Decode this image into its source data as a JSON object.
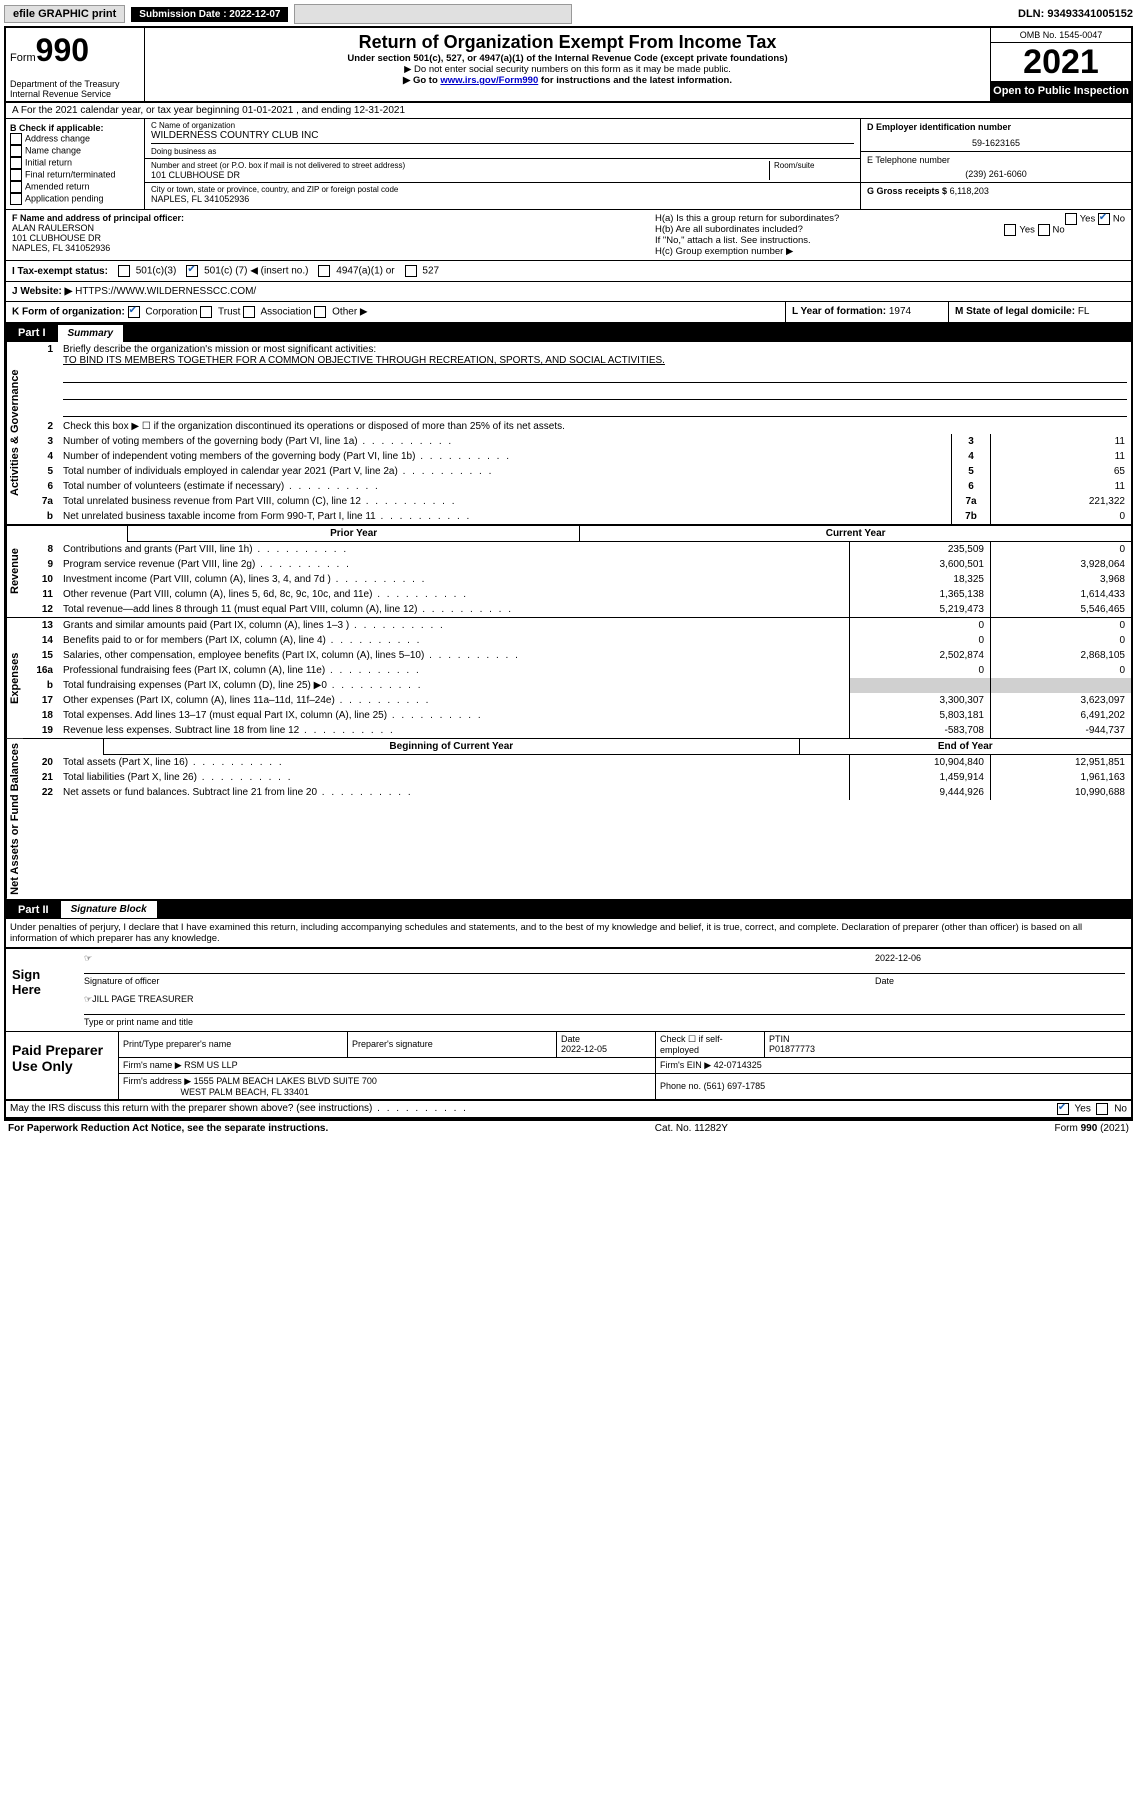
{
  "topbar": {
    "efile": "efile GRAPHIC print",
    "sub_label": "Submission Date : 2022-12-07",
    "dln": "DLN: 93493341005152"
  },
  "header": {
    "form_prefix": "Form",
    "form_number": "990",
    "dept": "Department of the Treasury",
    "irs": "Internal Revenue Service",
    "title": "Return of Organization Exempt From Income Tax",
    "sub1": "Under section 501(c), 527, or 4947(a)(1) of the Internal Revenue Code (except private foundations)",
    "sub2": "▶ Do not enter social security numbers on this form as it may be made public.",
    "sub3_prefix": "▶ Go to ",
    "sub3_link": "www.irs.gov/Form990",
    "sub3_suffix": " for instructions and the latest information.",
    "omb": "OMB No. 1545-0047",
    "year": "2021",
    "open_public": "Open to Public Inspection"
  },
  "row_a": "A For the 2021 calendar year, or tax year beginning 01-01-2021   , and ending 12-31-2021",
  "col_b": {
    "hdr": "B Check if applicable:",
    "items": [
      "Address change",
      "Name change",
      "Initial return",
      "Final return/terminated",
      "Amended return",
      "Application pending"
    ]
  },
  "col_c": {
    "name_lbl": "C Name of organization",
    "name_val": "WILDERNESS COUNTRY CLUB INC",
    "dba_lbl": "Doing business as",
    "dba_val": "",
    "addr_lbl": "Number and street (or P.O. box if mail is not delivered to street address)",
    "room_lbl": "Room/suite",
    "addr_val": "101 CLUBHOUSE DR",
    "city_lbl": "City or town, state or province, country, and ZIP or foreign postal code",
    "city_val": "NAPLES, FL  341052936"
  },
  "col_de": {
    "d_lbl": "D Employer identification number",
    "d_val": "59-1623165",
    "e_lbl": "E Telephone number",
    "e_val": "(239) 261-6060",
    "g_lbl": "G Gross receipts $",
    "g_val": "6,118,203"
  },
  "row_f": {
    "f_lbl": "F Name and address of principal officer:",
    "f_val1": "ALAN RAULERSON",
    "f_val2": "101 CLUBHOUSE DR",
    "f_val3": "NAPLES, FL  341052936",
    "ha": "H(a)  Is this a group return for subordinates?",
    "hb": "H(b)  Are all subordinates included?",
    "hb_note": "If \"No,\" attach a list. See instructions.",
    "hc": "H(c)  Group exemption number ▶"
  },
  "tax_status": {
    "lbl": "I  Tax-exempt status:",
    "opt1": "501(c)(3)",
    "opt2_pre": "501(c) (",
    "opt2_num": "7",
    "opt2_post": ") ◀ (insert no.)",
    "opt3": "4947(a)(1) or",
    "opt4": "527"
  },
  "row_j": {
    "lbl": "J  Website: ▶",
    "val": "HTTPS://WWW.WILDERNESSCC.COM/"
  },
  "row_k": {
    "lbl": "K Form of organization:",
    "opts": [
      "Corporation",
      "Trust",
      "Association",
      "Other ▶"
    ],
    "l_lbl": "L Year of formation:",
    "l_val": "1974",
    "m_lbl": "M State of legal domicile:",
    "m_val": "FL"
  },
  "part1": {
    "label": "Part I",
    "title": "Summary",
    "line1_lbl": "Briefly describe the organization's mission or most significant activities:",
    "line1_val": "TO BIND ITS MEMBERS TOGETHER FOR A COMMON OBJECTIVE THROUGH RECREATION, SPORTS, AND SOCIAL ACTIVITIES.",
    "line2": "Check this box ▶ ☐  if the organization discontinued its operations or disposed of more than 25% of its net assets.",
    "sides": {
      "gov": "Activities & Governance",
      "rev": "Revenue",
      "exp": "Expenses",
      "net": "Net Assets or Fund Balances"
    },
    "gov_rows": [
      {
        "n": "3",
        "t": "Number of voting members of the governing body (Part VI, line 1a)",
        "c": "3",
        "v": "11"
      },
      {
        "n": "4",
        "t": "Number of independent voting members of the governing body (Part VI, line 1b)",
        "c": "4",
        "v": "11"
      },
      {
        "n": "5",
        "t": "Total number of individuals employed in calendar year 2021 (Part V, line 2a)",
        "c": "5",
        "v": "65"
      },
      {
        "n": "6",
        "t": "Total number of volunteers (estimate if necessary)",
        "c": "6",
        "v": "11"
      },
      {
        "n": "7a",
        "t": "Total unrelated business revenue from Part VIII, column (C), line 12",
        "c": "7a",
        "v": "221,322"
      },
      {
        "n": "b",
        "t": "Net unrelated business taxable income from Form 990-T, Part I, line 11",
        "c": "7b",
        "v": "0"
      }
    ],
    "col_hdrs": {
      "prior": "Prior Year",
      "current": "Current Year",
      "boy": "Beginning of Current Year",
      "eoy": "End of Year"
    },
    "rev_rows": [
      {
        "n": "8",
        "t": "Contributions and grants (Part VIII, line 1h)",
        "p": "235,509",
        "c": "0"
      },
      {
        "n": "9",
        "t": "Program service revenue (Part VIII, line 2g)",
        "p": "3,600,501",
        "c": "3,928,064"
      },
      {
        "n": "10",
        "t": "Investment income (Part VIII, column (A), lines 3, 4, and 7d )",
        "p": "18,325",
        "c": "3,968"
      },
      {
        "n": "11",
        "t": "Other revenue (Part VIII, column (A), lines 5, 6d, 8c, 9c, 10c, and 11e)",
        "p": "1,365,138",
        "c": "1,614,433"
      },
      {
        "n": "12",
        "t": "Total revenue—add lines 8 through 11 (must equal Part VIII, column (A), line 12)",
        "p": "5,219,473",
        "c": "5,546,465"
      }
    ],
    "exp_rows": [
      {
        "n": "13",
        "t": "Grants and similar amounts paid (Part IX, column (A), lines 1–3 )",
        "p": "0",
        "c": "0"
      },
      {
        "n": "14",
        "t": "Benefits paid to or for members (Part IX, column (A), line 4)",
        "p": "0",
        "c": "0"
      },
      {
        "n": "15",
        "t": "Salaries, other compensation, employee benefits (Part IX, column (A), lines 5–10)",
        "p": "2,502,874",
        "c": "2,868,105"
      },
      {
        "n": "16a",
        "t": "Professional fundraising fees (Part IX, column (A), line 11e)",
        "p": "0",
        "c": "0"
      },
      {
        "n": "b",
        "t": "Total fundraising expenses (Part IX, column (D), line 25) ▶0",
        "p": "",
        "c": "",
        "shaded": true
      },
      {
        "n": "17",
        "t": "Other expenses (Part IX, column (A), lines 11a–11d, 11f–24e)",
        "p": "3,300,307",
        "c": "3,623,097"
      },
      {
        "n": "18",
        "t": "Total expenses. Add lines 13–17 (must equal Part IX, column (A), line 25)",
        "p": "5,803,181",
        "c": "6,491,202"
      },
      {
        "n": "19",
        "t": "Revenue less expenses. Subtract line 18 from line 12",
        "p": "-583,708",
        "c": "-944,737"
      }
    ],
    "net_rows": [
      {
        "n": "20",
        "t": "Total assets (Part X, line 16)",
        "p": "10,904,840",
        "c": "12,951,851"
      },
      {
        "n": "21",
        "t": "Total liabilities (Part X, line 26)",
        "p": "1,459,914",
        "c": "1,961,163"
      },
      {
        "n": "22",
        "t": "Net assets or fund balances. Subtract line 21 from line 20",
        "p": "9,444,926",
        "c": "10,990,688"
      }
    ]
  },
  "part2": {
    "label": "Part II",
    "title": "Signature Block",
    "penalties": "Under penalties of perjury, I declare that I have examined this return, including accompanying schedules and statements, and to the best of my knowledge and belief, it is true, correct, and complete. Declaration of preparer (other than officer) is based on all information of which preparer has any knowledge."
  },
  "sign": {
    "here": "Sign Here",
    "sig_lbl": "Signature of officer",
    "date_val": "2022-12-06",
    "date_lbl": "Date",
    "name_val": "JILL PAGE  TREASURER",
    "name_lbl": "Type or print name and title"
  },
  "paid": {
    "lbl": "Paid Preparer Use Only",
    "h1": "Print/Type preparer's name",
    "h2": "Preparer's signature",
    "h3_lbl": "Date",
    "h3_val": "2022-12-05",
    "h4": "Check ☐ if self-employed",
    "h5_lbl": "PTIN",
    "h5_val": "P01877773",
    "firm_name_lbl": "Firm's name   ▶",
    "firm_name_val": "RSM US LLP",
    "firm_ein_lbl": "Firm's EIN ▶",
    "firm_ein_val": "42-0714325",
    "firm_addr_lbl": "Firm's address ▶",
    "firm_addr_val1": "1555 PALM BEACH LAKES BLVD SUITE 700",
    "firm_addr_val2": "WEST PALM BEACH, FL  33401",
    "phone_lbl": "Phone no.",
    "phone_val": "(561) 697-1785"
  },
  "footer": {
    "discuss": "May the IRS discuss this return with the preparer shown above? (see instructions)",
    "yes": "Yes",
    "no": "No",
    "paperwork": "For Paperwork Reduction Act Notice, see the separate instructions.",
    "cat": "Cat. No. 11282Y",
    "form": "Form 990 (2021)"
  }
}
